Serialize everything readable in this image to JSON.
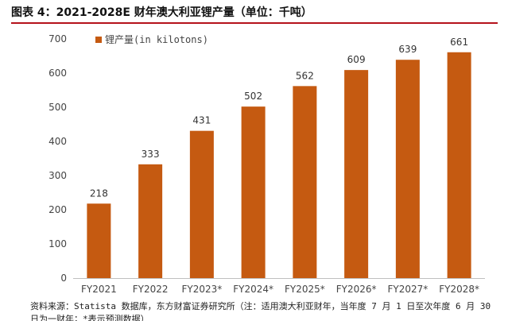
{
  "title": "图表 4：2021-2028E 财年澳大利亚锂产量（单位：千吨）",
  "footnote": "资料来源：Statista 数据库，东方财富证券研究所（注：适用澳大利亚财年，当年度 7 月 1 日至次年度 6 月 30 日为一财年；*表示预测数据）",
  "colors": {
    "bar": "#c55a11",
    "axis": "#bfbfbf",
    "title_rule": "#b5121b"
  },
  "chart_data": {
    "type": "bar",
    "categories": [
      "FY2021",
      "FY2022",
      "FY2023*",
      "FY2024*",
      "FY2025*",
      "FY2026*",
      "FY2027*",
      "FY2028*"
    ],
    "series": [
      {
        "name": "锂产量(in kilotons)",
        "values": [
          218,
          333,
          431,
          502,
          562,
          609,
          639,
          661
        ]
      }
    ],
    "ylim": [
      0,
      700
    ],
    "yticks": [
      0,
      100,
      200,
      300,
      400,
      500,
      600,
      700
    ],
    "grid": false,
    "legend": "top-left"
  }
}
